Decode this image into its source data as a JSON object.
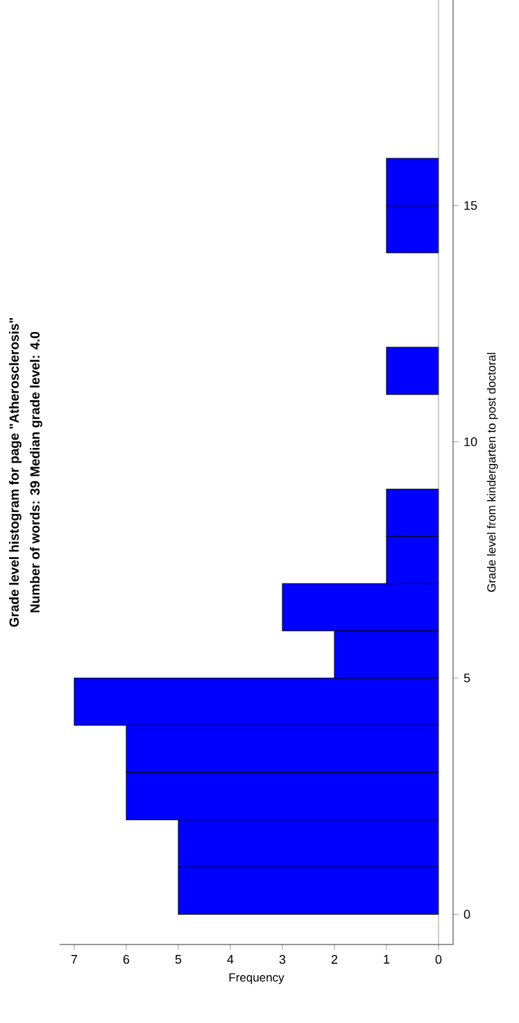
{
  "chart_data": {
    "type": "histogram",
    "orientation": "horizontal",
    "title": "Grade level histogram for page \"Atherosclerosis\"",
    "subtitle": "Number of words: 39 Median grade level: 4.0",
    "xlabel": "Frequency",
    "ylabel": "Grade level from kindergarten to post doctoral",
    "bins": [
      0,
      1,
      2,
      3,
      4,
      5,
      6,
      7,
      8,
      9,
      10,
      11,
      12,
      13,
      14,
      15,
      16
    ],
    "values": [
      5,
      5,
      6,
      6,
      7,
      2,
      3,
      1,
      1,
      0,
      0,
      1,
      0,
      0,
      1,
      1
    ],
    "color": "#0000ff",
    "xlim": [
      7.28,
      -0.28
    ],
    "ylim": [
      -0.64,
      19.35
    ],
    "xticks": [
      0,
      1,
      2,
      3,
      4,
      5,
      6,
      7
    ],
    "yticks": [
      0,
      5,
      10,
      15
    ],
    "ref_lines": [
      {
        "axis": "x",
        "value": 0,
        "color": "#808080"
      }
    ],
    "grid": false
  }
}
